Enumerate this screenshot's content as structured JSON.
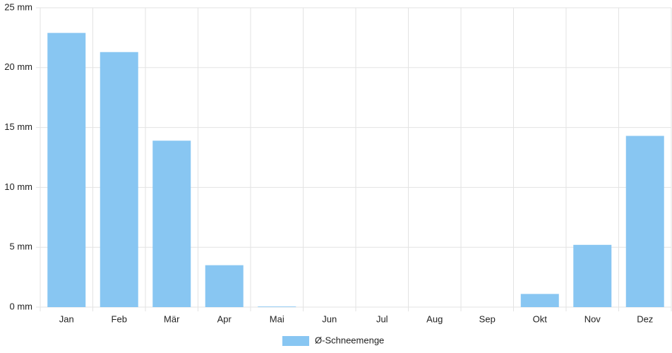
{
  "chart_data": {
    "type": "bar",
    "categories": [
      "Jan",
      "Feb",
      "Mär",
      "Apr",
      "Mai",
      "Jun",
      "Jul",
      "Aug",
      "Sep",
      "Okt",
      "Nov",
      "Dez"
    ],
    "series": [
      {
        "name": "Ø-Schneemenge",
        "color": "#88c6f2",
        "values": [
          22.9,
          21.3,
          13.9,
          3.5,
          0.05,
          0,
          0,
          0,
          0,
          1.1,
          5.2,
          14.3
        ]
      }
    ],
    "ylim": [
      0,
      25
    ],
    "yticks": [
      {
        "value": 0,
        "label": "0 mm"
      },
      {
        "value": 5,
        "label": "5 mm"
      },
      {
        "value": 10,
        "label": "10 mm"
      },
      {
        "value": 15,
        "label": "15 mm"
      },
      {
        "value": 20,
        "label": "20 mm"
      },
      {
        "value": 25,
        "label": "25 mm"
      }
    ],
    "grid": true
  }
}
